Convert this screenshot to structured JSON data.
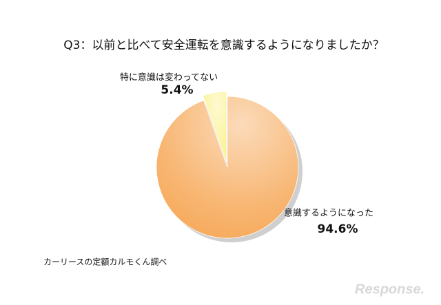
{
  "chart_data": {
    "type": "pie",
    "title": "Q3：以前と比べて安全運転を意識するようになりましたか？",
    "categories": [
      "意識するようになった",
      "特に意識は変わってない"
    ],
    "values": [
      94.6,
      5.4
    ],
    "value_labels": [
      "94.6%",
      "5.4%"
    ],
    "colors": [
      "#f6a552",
      "#fbf28c"
    ],
    "source": "カーリースの定額カルモくん調べ",
    "watermark": "Response."
  }
}
